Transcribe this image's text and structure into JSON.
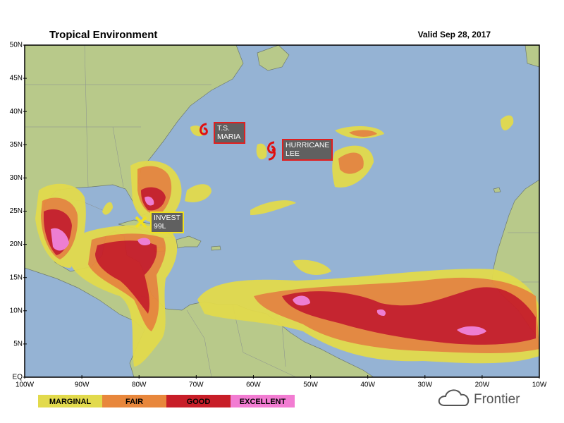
{
  "header": {
    "title": "Tropical Environment",
    "valid": "Valid Sep 28, 2017"
  },
  "map": {
    "lat_labels": [
      "50N",
      "45N",
      "40N",
      "35N",
      "30N",
      "25N",
      "20N",
      "15N",
      "10N",
      "5N",
      "EQ"
    ],
    "lon_labels": [
      "100W",
      "90W",
      "80W",
      "70W",
      "60W",
      "50W",
      "40W",
      "30W",
      "20W",
      "10W"
    ],
    "storms": [
      {
        "lines": [
          "T.S.",
          "MARIA"
        ],
        "border": "#e02020"
      },
      {
        "lines": [
          "HURRICANE",
          "LEE"
        ],
        "border": "#e02020"
      },
      {
        "lines": [
          "INVEST",
          "99L"
        ],
        "border": "#f0e020"
      }
    ]
  },
  "legend": {
    "items": [
      {
        "label": "MARGINAL",
        "color": "#e2da4c"
      },
      {
        "label": "FAIR",
        "color": "#e8873c"
      },
      {
        "label": "GOOD",
        "color": "#c81e28"
      },
      {
        "label": "EXCELLENT",
        "color": "#f27cd2"
      }
    ]
  },
  "brand": "Frontier"
}
